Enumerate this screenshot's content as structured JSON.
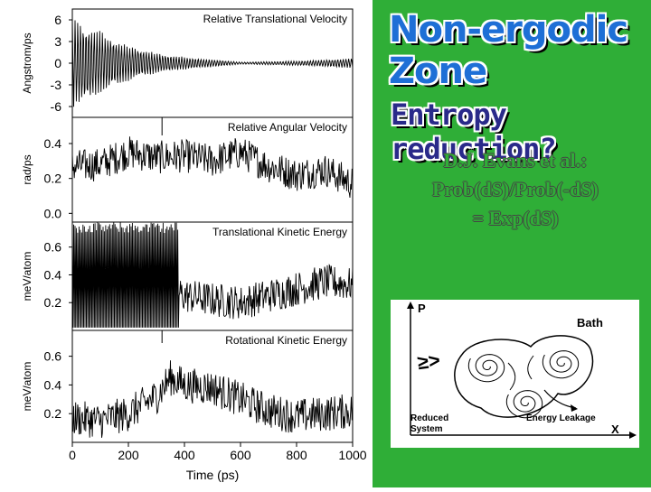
{
  "slide": {
    "title": "Non-ergodic Zone",
    "subtitle": "Entropy reduction?",
    "citation_lines": [
      "D.J. Evans et al.:",
      "Prob(dS)/Prob(-dS)",
      "= Exp(dS)"
    ],
    "colors": {
      "panel_green": "#2fae37",
      "title_blue": "#1e6fd6",
      "subtitle_navy": "#2a2a8a"
    }
  },
  "chart_data": [
    {
      "type": "line",
      "title": "Relative Translational Velocity",
      "ylabel": "Angstrom/ps",
      "xlabel": "",
      "xlim": [
        0,
        1000
      ],
      "ylim": [
        -7.5,
        7.5
      ],
      "yticks": [
        "6",
        "3",
        "0",
        "-3",
        "-6"
      ],
      "ytick_values": [
        6,
        3,
        0,
        -3,
        -6
      ],
      "series": [
        {
          "x": [
            0,
            100,
            200,
            300,
            400,
            600,
            800,
            1000
          ],
          "amplitude": [
            6.5,
            4.5,
            2.5,
            1.4,
            0.9,
            0.15,
            0.3,
            0.7
          ]
        }
      ]
    },
    {
      "type": "line",
      "title": "Relative Angular Velocity",
      "ylabel": "rad/ps",
      "xlabel": "",
      "xlim": [
        0,
        1000
      ],
      "ylim": [
        -0.05,
        0.55
      ],
      "yticks": [
        "0.4",
        "0.2",
        "0.0"
      ],
      "ytick_values": [
        0.4,
        0.2,
        0.0
      ],
      "series": [
        {
          "x": [
            0,
            100,
            200,
            300,
            400,
            500,
            600,
            700,
            800,
            900,
            1000
          ],
          "y": [
            0.27,
            0.28,
            0.35,
            0.32,
            0.33,
            0.3,
            0.35,
            0.27,
            0.22,
            0.25,
            0.17
          ]
        }
      ]
    },
    {
      "type": "line",
      "title": "Translational Kinetic Energy",
      "ylabel": "meV/atom",
      "xlabel": "",
      "xlim": [
        0,
        1000
      ],
      "ylim": [
        0.0,
        0.78
      ],
      "yticks": [
        "0.6",
        "0.4",
        "0.2"
      ],
      "ytick_values": [
        0.6,
        0.4,
        0.2
      ],
      "series": [
        {
          "x": [
            0,
            100,
            200,
            300,
            400,
            500,
            600,
            700,
            800,
            900,
            1000
          ],
          "y": [
            0.45,
            0.45,
            0.42,
            0.33,
            0.25,
            0.22,
            0.2,
            0.25,
            0.3,
            0.35,
            0.33
          ]
        }
      ]
    },
    {
      "type": "line",
      "title": "Rotational Kinetic Energy",
      "ylabel": "meV/atom",
      "xlabel": "Time (ps)",
      "xlim": [
        0,
        1000
      ],
      "ylim": [
        0.0,
        0.78
      ],
      "yticks": [
        "0.6",
        "0.4",
        "0.2"
      ],
      "ytick_values": [
        0.6,
        0.4,
        0.2
      ],
      "xticks": [
        "0",
        "200",
        "400",
        "600",
        "800",
        "1000"
      ],
      "xtick_values": [
        0,
        200,
        400,
        600,
        800,
        1000
      ],
      "series": [
        {
          "x": [
            0,
            100,
            200,
            300,
            350,
            400,
            500,
            600,
            700,
            800,
            900,
            1000
          ],
          "y": [
            0.17,
            0.15,
            0.2,
            0.32,
            0.45,
            0.4,
            0.38,
            0.3,
            0.22,
            0.18,
            0.2,
            0.22
          ]
        }
      ]
    }
  ],
  "inset_diagram": {
    "axis_y_label": "P",
    "axis_x_label": "X",
    "bath_label": "Bath",
    "reduced_system_label": "Reduced\nSystem",
    "reduced_system_lines": [
      "Reduced",
      "System"
    ],
    "leakage_label": "Energy Leakage",
    "arrow_glyph": "≥>"
  }
}
